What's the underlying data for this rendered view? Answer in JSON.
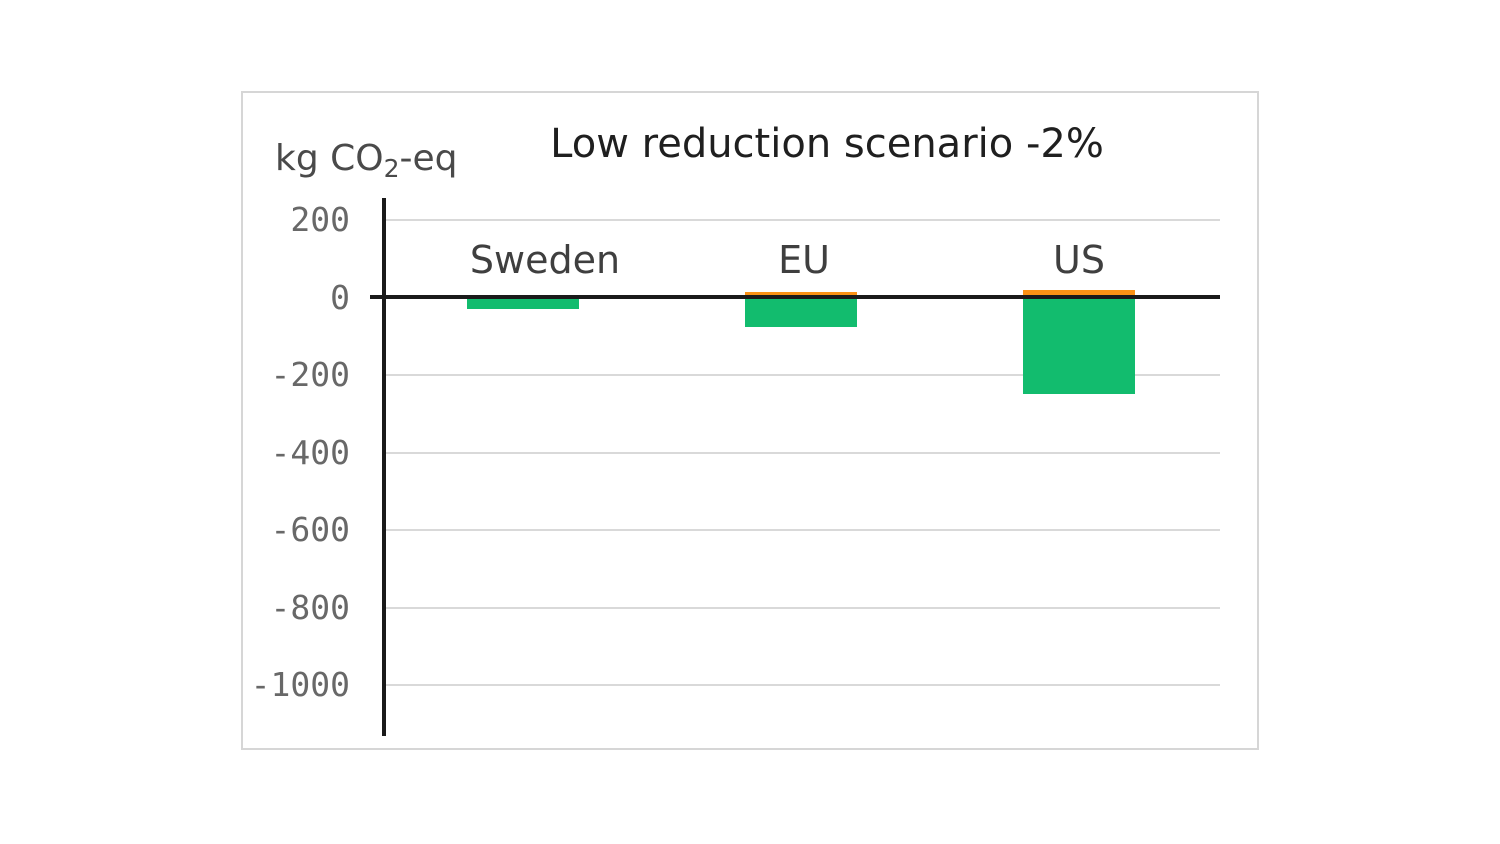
{
  "chart_data": {
    "type": "bar",
    "title": "Low reduction scenario -2%",
    "y_axis_unit": {
      "main": "kg CO",
      "sub": "2",
      "tail": "-eq"
    },
    "categories": [
      "Sweden",
      "EU",
      "US"
    ],
    "series": [
      {
        "name": "positive",
        "color": "#FB9215",
        "values": [
          0,
          15,
          20
        ]
      },
      {
        "name": "negative",
        "color": "#12BC6E",
        "values": [
          -30,
          -75,
          -250
        ]
      }
    ],
    "yticks": [
      200,
      0,
      -200,
      -400,
      -600,
      -800,
      -1000
    ],
    "ylim": [
      -1130,
      260
    ],
    "grid": true,
    "legend": false,
    "colors": {
      "positive_bar": "#FB9215",
      "negative_bar": "#12BC6E",
      "axis": "#1a1a1a",
      "gridline": "#d9d9d9",
      "tick_text": "#686868",
      "title_text": "#1f1f1f",
      "category_text": "#3f3f3f",
      "panel_border": "#d6d6d6",
      "background": "#ffffff"
    }
  }
}
